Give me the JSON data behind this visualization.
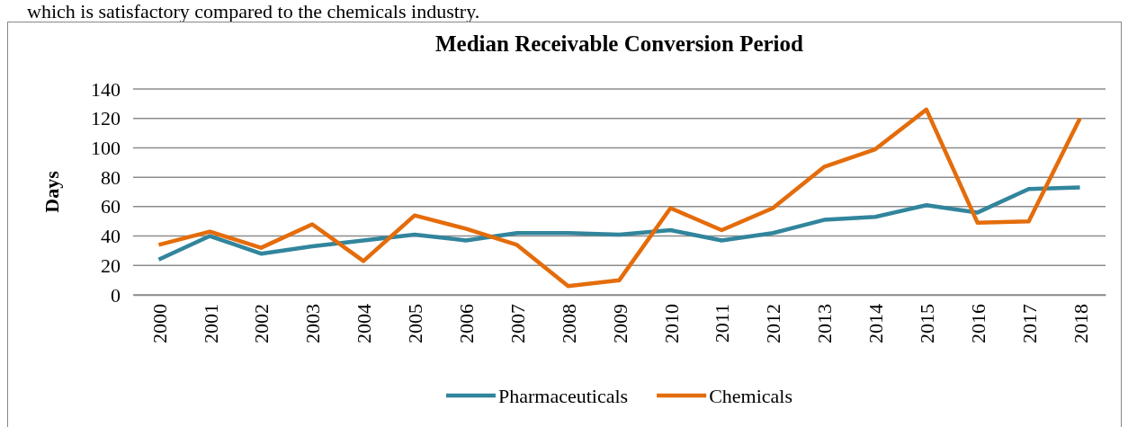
{
  "chart_data": {
    "type": "line",
    "title": "Median Receivable Conversion Period",
    "ylabel": "Days",
    "annotations": [
      "which is satisfactory compared to the chemicals industry."
    ],
    "categories": [
      "2000",
      "2001",
      "2002",
      "2003",
      "2004",
      "2005",
      "2006",
      "2007",
      "2008",
      "2009",
      "2010",
      "2011",
      "2012",
      "2013",
      "2014",
      "2015",
      "2016",
      "2017",
      "2018"
    ],
    "series": [
      {
        "name": "Pharmaceuticals",
        "color": "#31859c",
        "values": [
          24,
          40,
          28,
          33,
          37,
          41,
          37,
          42,
          42,
          41,
          44,
          37,
          42,
          51,
          53,
          61,
          56,
          72,
          73
        ]
      },
      {
        "name": "Chemicals",
        "color": "#e46c0a",
        "values": [
          34,
          43,
          32,
          48,
          23,
          54,
          45,
          34,
          6,
          10,
          59,
          44,
          59,
          87,
          99,
          126,
          49,
          50,
          120
        ]
      }
    ],
    "ylim": [
      0,
      140
    ],
    "yticks": [
      0,
      20,
      40,
      60,
      80,
      100,
      120,
      140
    ],
    "grid": "y",
    "legend": "bottom",
    "marker": "none",
    "line_style": "solid"
  }
}
